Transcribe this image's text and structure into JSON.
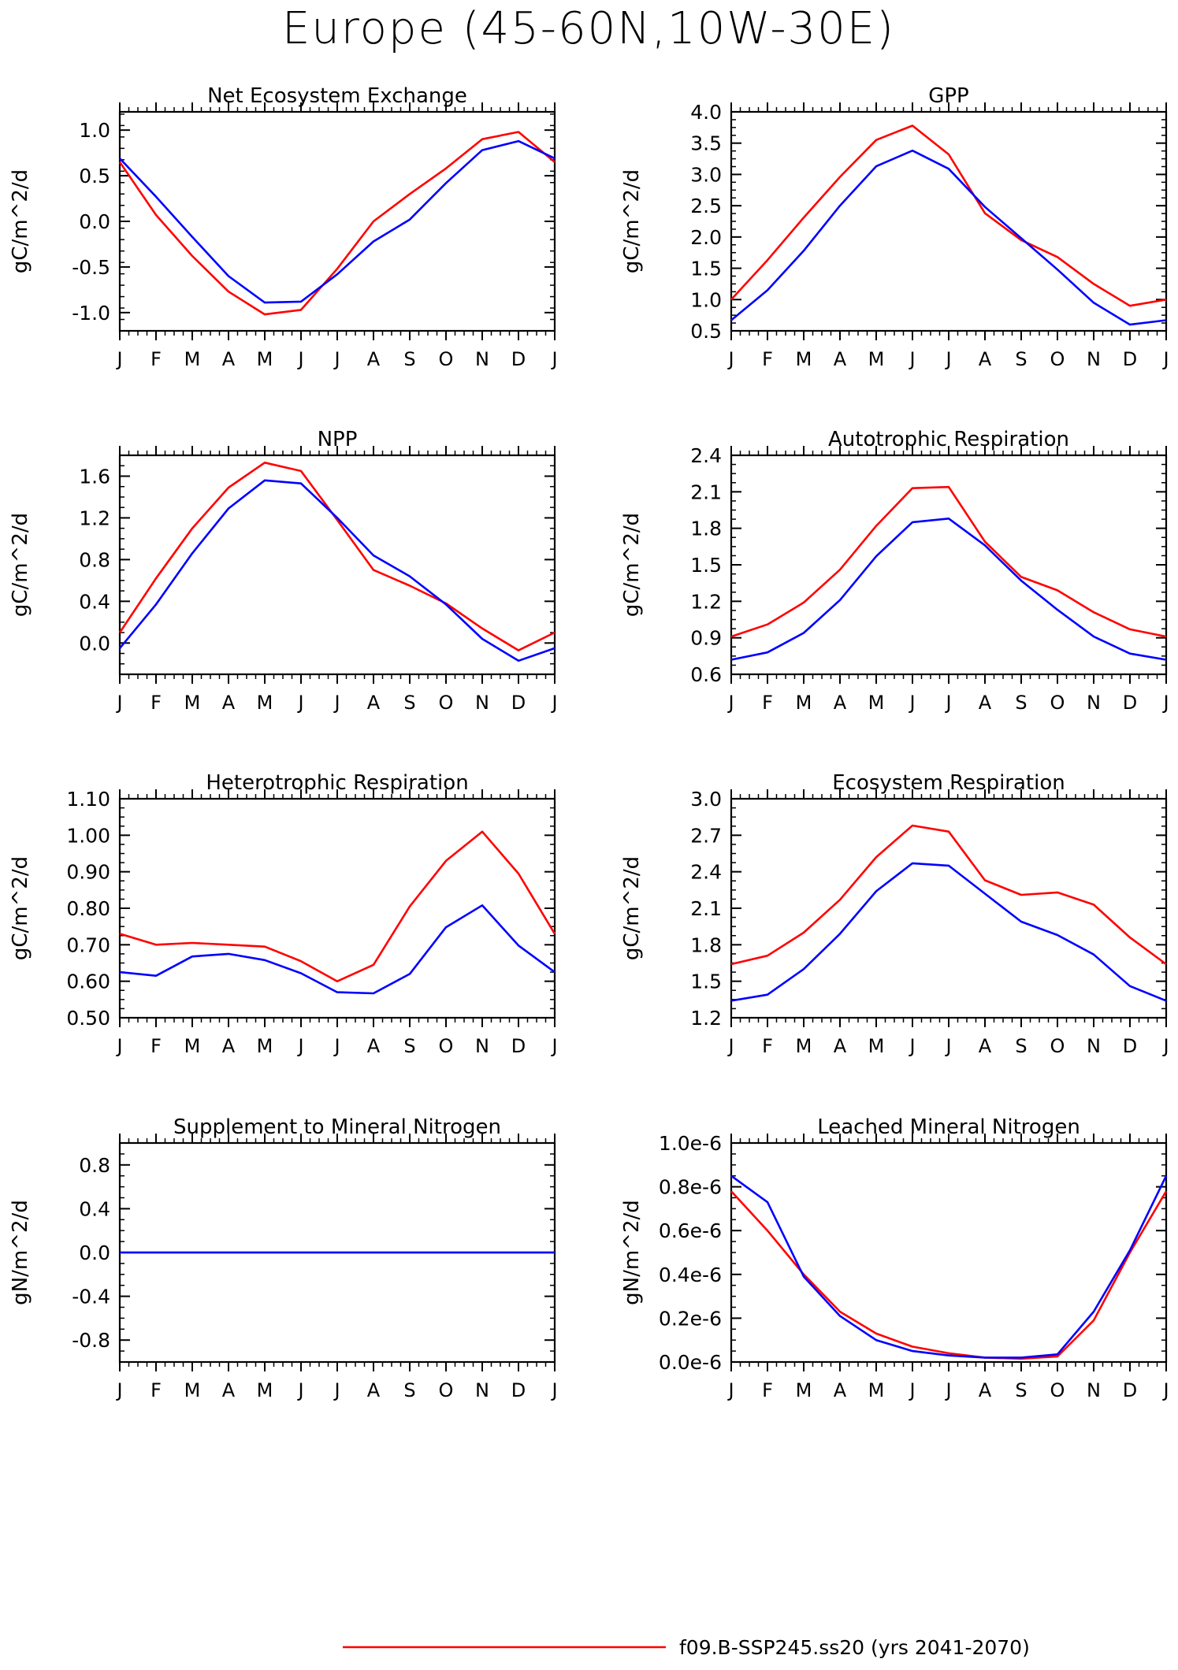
{
  "figure_title": "Europe (45-60N,10W-30E)",
  "legend": [
    {
      "label": "f09.B-SSP245.ss20 (yrs 2041-2070)",
      "color": "#ff0000"
    }
  ],
  "chart_data": [
    {
      "type": "line",
      "title": "Net Ecosystem Exchange",
      "ylabel": "gC/m^2/d",
      "categories": [
        "J",
        "F",
        "M",
        "A",
        "M",
        "J",
        "J",
        "A",
        "S",
        "O",
        "N",
        "D",
        "J"
      ],
      "ylim": [
        -1.2,
        1.2
      ],
      "yticks": [
        -1.0,
        -0.5,
        0.0,
        0.5,
        1.0
      ],
      "ytick_labels": [
        "-1.0",
        "-0.5",
        "0.0",
        "0.5",
        "1.0"
      ],
      "series": [
        {
          "color": "#ff0000",
          "values": [
            0.65,
            0.07,
            -0.38,
            -0.77,
            -1.02,
            -0.97,
            -0.52,
            0.0,
            0.3,
            0.58,
            0.9,
            0.98,
            0.65
          ]
        },
        {
          "color": "#0000ff",
          "values": [
            0.69,
            0.27,
            -0.17,
            -0.6,
            -0.89,
            -0.88,
            -0.58,
            -0.22,
            0.02,
            0.42,
            0.78,
            0.88,
            0.69
          ]
        }
      ]
    },
    {
      "type": "line",
      "title": "GPP",
      "ylabel": "gC/m^2/d",
      "categories": [
        "J",
        "F",
        "M",
        "A",
        "M",
        "J",
        "J",
        "A",
        "S",
        "O",
        "N",
        "D",
        "J"
      ],
      "ylim": [
        0.5,
        4.0
      ],
      "yticks": [
        0.5,
        1.0,
        1.5,
        2.0,
        2.5,
        3.0,
        3.5,
        4.0
      ],
      "ytick_labels": [
        "0.5",
        "1.0",
        "1.5",
        "2.0",
        "2.5",
        "3.0",
        "3.5",
        "4.0"
      ],
      "series": [
        {
          "color": "#ff0000",
          "values": [
            1.0,
            1.63,
            2.31,
            2.96,
            3.55,
            3.78,
            3.32,
            2.38,
            1.95,
            1.68,
            1.25,
            0.9,
            1.0
          ]
        },
        {
          "color": "#0000ff",
          "values": [
            0.67,
            1.15,
            1.78,
            2.5,
            3.13,
            3.38,
            3.09,
            2.48,
            1.98,
            1.48,
            0.95,
            0.6,
            0.67
          ]
        }
      ]
    },
    {
      "type": "line",
      "title": "NPP",
      "ylabel": "gC/m^2/d",
      "categories": [
        "J",
        "F",
        "M",
        "A",
        "M",
        "J",
        "J",
        "A",
        "S",
        "O",
        "N",
        "D",
        "J"
      ],
      "ylim": [
        -0.3,
        1.8
      ],
      "yticks": [
        0.0,
        0.4,
        0.8,
        1.2,
        1.6
      ],
      "ytick_labels": [
        "0.0",
        "0.4",
        "0.8",
        "1.2",
        "1.6"
      ],
      "series": [
        {
          "color": "#ff0000",
          "values": [
            0.1,
            0.62,
            1.1,
            1.49,
            1.73,
            1.65,
            1.18,
            0.7,
            0.55,
            0.38,
            0.14,
            -0.07,
            0.1
          ]
        },
        {
          "color": "#0000ff",
          "values": [
            -0.05,
            0.37,
            0.86,
            1.29,
            1.56,
            1.53,
            1.2,
            0.84,
            0.64,
            0.37,
            0.04,
            -0.17,
            -0.05
          ]
        }
      ]
    },
    {
      "type": "line",
      "title": "Autotrophic Respiration",
      "ylabel": "gC/m^2/d",
      "categories": [
        "J",
        "F",
        "M",
        "A",
        "M",
        "J",
        "J",
        "A",
        "S",
        "O",
        "N",
        "D",
        "J"
      ],
      "ylim": [
        0.6,
        2.4
      ],
      "yticks": [
        0.6,
        0.9,
        1.2,
        1.5,
        1.8,
        2.1,
        2.4
      ],
      "ytick_labels": [
        "0.6",
        "0.9",
        "1.2",
        "1.5",
        "1.8",
        "2.1",
        "2.4"
      ],
      "series": [
        {
          "color": "#ff0000",
          "values": [
            0.91,
            1.01,
            1.19,
            1.46,
            1.82,
            2.13,
            2.14,
            1.69,
            1.4,
            1.29,
            1.11,
            0.97,
            0.91
          ]
        },
        {
          "color": "#0000ff",
          "values": [
            0.72,
            0.78,
            0.94,
            1.21,
            1.57,
            1.85,
            1.88,
            1.66,
            1.37,
            1.13,
            0.91,
            0.77,
            0.72
          ]
        }
      ]
    },
    {
      "type": "line",
      "title": "Heterotrophic Respiration",
      "ylabel": "gC/m^2/d",
      "categories": [
        "J",
        "F",
        "M",
        "A",
        "M",
        "J",
        "J",
        "A",
        "S",
        "O",
        "N",
        "D",
        "J"
      ],
      "ylim": [
        0.5,
        1.1
      ],
      "yticks": [
        0.5,
        0.6,
        0.7,
        0.8,
        0.9,
        1.0,
        1.1
      ],
      "ytick_labels": [
        "0.50",
        "0.60",
        "0.70",
        "0.80",
        "0.90",
        "1.00",
        "1.10"
      ],
      "series": [
        {
          "color": "#ff0000",
          "values": [
            0.73,
            0.7,
            0.705,
            0.7,
            0.695,
            0.655,
            0.6,
            0.645,
            0.805,
            0.93,
            1.01,
            0.895,
            0.73
          ]
        },
        {
          "color": "#0000ff",
          "values": [
            0.625,
            0.615,
            0.668,
            0.675,
            0.658,
            0.622,
            0.57,
            0.567,
            0.62,
            0.748,
            0.808,
            0.698,
            0.625
          ]
        }
      ]
    },
    {
      "type": "line",
      "title": "Ecosystem Respiration",
      "ylabel": "gC/m^2/d",
      "categories": [
        "J",
        "F",
        "M",
        "A",
        "M",
        "J",
        "J",
        "A",
        "S",
        "O",
        "N",
        "D",
        "J"
      ],
      "ylim": [
        1.2,
        3.0
      ],
      "yticks": [
        1.2,
        1.5,
        1.8,
        2.1,
        2.4,
        2.7,
        3.0
      ],
      "ytick_labels": [
        "1.2",
        "1.5",
        "1.8",
        "2.1",
        "2.4",
        "2.7",
        "3.0"
      ],
      "series": [
        {
          "color": "#ff0000",
          "values": [
            1.64,
            1.71,
            1.9,
            2.17,
            2.52,
            2.78,
            2.73,
            2.33,
            2.21,
            2.23,
            2.13,
            1.86,
            1.64
          ]
        },
        {
          "color": "#0000ff",
          "values": [
            1.34,
            1.39,
            1.6,
            1.89,
            2.24,
            2.47,
            2.45,
            2.22,
            1.99,
            1.88,
            1.72,
            1.46,
            1.34
          ]
        }
      ]
    },
    {
      "type": "line",
      "title": "Supplement to Mineral Nitrogen",
      "ylabel": "gN/m^2/d",
      "categories": [
        "J",
        "F",
        "M",
        "A",
        "M",
        "J",
        "J",
        "A",
        "S",
        "O",
        "N",
        "D",
        "J"
      ],
      "ylim": [
        -1.0,
        1.0
      ],
      "yticks": [
        -0.8,
        -0.4,
        0.0,
        0.4,
        0.8
      ],
      "ytick_labels": [
        "-0.8",
        "-0.4",
        "0.0",
        "0.4",
        "0.8"
      ],
      "series": [
        {
          "color": "#ff0000",
          "values": [
            0,
            0,
            0,
            0,
            0,
            0,
            0,
            0,
            0,
            0,
            0,
            0,
            0
          ]
        },
        {
          "color": "#0000ff",
          "values": [
            0,
            0,
            0,
            0,
            0,
            0,
            0,
            0,
            0,
            0,
            0,
            0,
            0
          ]
        }
      ]
    },
    {
      "type": "line",
      "title": "Leached Mineral Nitrogen",
      "ylabel": "gN/m^2/d",
      "categories": [
        "J",
        "F",
        "M",
        "A",
        "M",
        "J",
        "J",
        "A",
        "S",
        "O",
        "N",
        "D",
        "J"
      ],
      "ylim": [
        0.0,
        1e-06
      ],
      "yticks": [
        0.0,
        2e-07,
        4e-07,
        6e-07,
        8e-07,
        1e-06
      ],
      "ytick_labels": [
        "0.0e-6",
        "0.2e-6",
        "0.4e-6",
        "0.6e-6",
        "0.8e-6",
        "1.0e-6"
      ],
      "series": [
        {
          "color": "#ff0000",
          "values": [
            7.8e-07,
            6e-07,
            4e-07,
            2.3e-07,
            1.3e-07,
            7e-08,
            4e-08,
            2e-08,
            1.5e-08,
            2.5e-08,
            1.9e-07,
            5e-07,
            7.8e-07
          ]
        },
        {
          "color": "#0000ff",
          "values": [
            8.5e-07,
            7.3e-07,
            3.9e-07,
            2.1e-07,
            1e-07,
            5e-08,
            3e-08,
            2e-08,
            2e-08,
            3.5e-08,
            2.3e-07,
            5.1e-07,
            8.5e-07
          ]
        }
      ]
    }
  ]
}
